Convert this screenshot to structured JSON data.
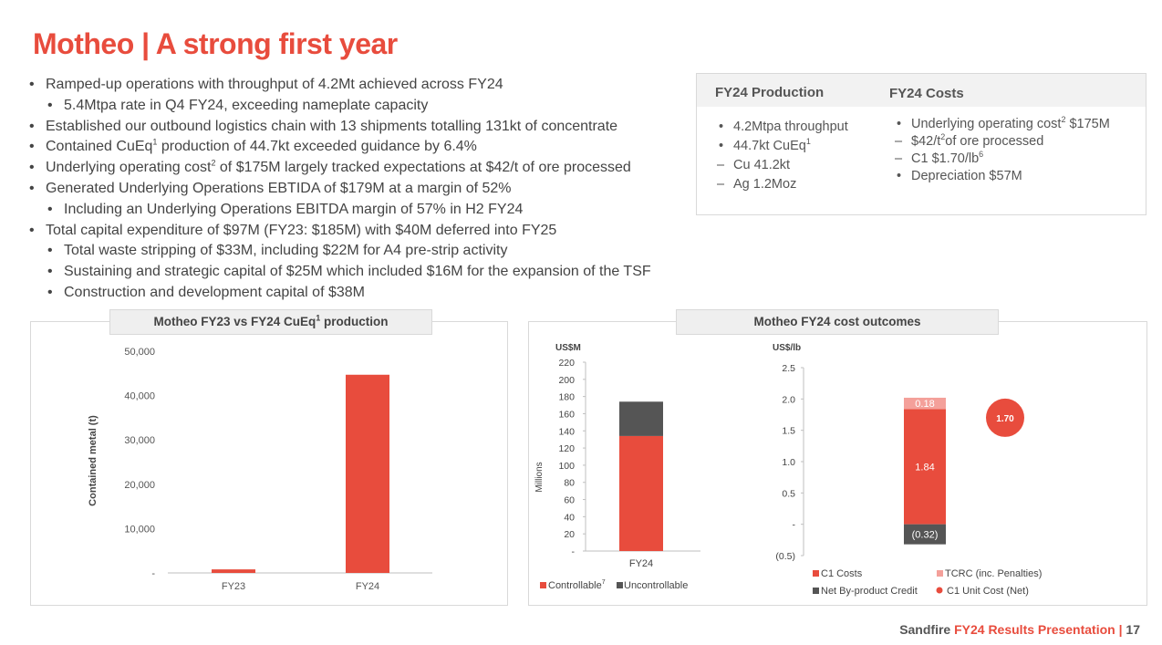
{
  "title": "Motheo | A strong first year",
  "bullets": [
    {
      "pre": "Ramped-up operations with throughput of 4.2Mt achieved across FY24",
      "sup": "",
      "post": ""
    },
    {
      "pre": "5.4Mtpa rate in Q4 FY24, exceeding nameplate capacity",
      "sup": "",
      "post": ""
    },
    {
      "pre": "Established our outbound logistics chain with 13 shipments totalling 131kt of concentrate",
      "sup": "",
      "post": ""
    },
    {
      "pre": "Contained CuEq",
      "sup": "1",
      "post": " production of 44.7kt exceeded guidance by 6.4%"
    },
    {
      "pre": "Underlying operating cost",
      "sup": "2",
      "post": " of $175M largely tracked expectations at $42/t of ore processed"
    },
    {
      "pre": "Generated Underlying Operations EBTIDA of $179M at a margin of 52%",
      "sup": "",
      "post": ""
    },
    {
      "pre": "Including an Underlying Operations EBITDA margin of 57% in H2 FY24",
      "sup": "",
      "post": ""
    },
    {
      "pre": "Total capital expenditure of $97M (FY23: $185M) with $40M deferred into FY25",
      "sup": "",
      "post": ""
    },
    {
      "pre": "Total waste stripping of $33M, including $22M for A4 pre-strip activity",
      "sup": "",
      "post": ""
    },
    {
      "pre": "Sustaining and strategic capital of $25M which included $16M for the expansion of the TSF",
      "sup": "",
      "post": ""
    },
    {
      "pre": "Construction and development capital of $38M",
      "sup": "",
      "post": ""
    }
  ],
  "summary": {
    "production_heading": "FY24 Production",
    "costs_heading": "FY24 Costs",
    "production_items": [
      {
        "text": "4.2Mtpa throughput",
        "sup": ""
      },
      {
        "text": "44.7kt CuEq",
        "sup": "1"
      },
      {
        "text": "Cu 41.2kt",
        "sup": ""
      },
      {
        "text": "Ag 1.2Moz",
        "sup": ""
      }
    ],
    "cost_items": [
      {
        "pre": "Underlying operating cost",
        "sup": "2",
        "post": " $175M"
      },
      {
        "pre": "$42/t",
        "sup": "2",
        "post": "of ore processed"
      },
      {
        "pre": "C1 $1.70/lb",
        "sup": "6",
        "post": ""
      },
      {
        "pre": "Depreciation $57M",
        "sup": "",
        "post": ""
      }
    ]
  },
  "chart1_title": {
    "pre": "Motheo FY23 vs FY24 CuEq",
    "sup": "1",
    "post": " production"
  },
  "chart2_panel_title": "Motheo FY24 cost outcomes",
  "chart_data": [
    {
      "type": "bar",
      "ylabel": "Contained metal (t)",
      "categories": [
        "FY23",
        "FY24"
      ],
      "values": [
        800,
        44700
      ],
      "ylim": [
        0,
        50000
      ],
      "yticks": [
        0,
        10000,
        20000,
        30000,
        40000,
        50000
      ],
      "ytick_labels": [
        "-",
        "10,000",
        "20,000",
        "30,000",
        "40,000",
        "50,000"
      ],
      "colors": {
        "bar": "#e84c3d"
      }
    },
    {
      "type": "bar",
      "stacked": true,
      "unit_label": "US$M",
      "ylabel": "Millions",
      "categories": [
        "FY24"
      ],
      "ylim": [
        0,
        220
      ],
      "yticks": [
        0,
        20,
        40,
        60,
        80,
        100,
        120,
        140,
        160,
        180,
        200,
        220
      ],
      "ytick_labels": [
        "-",
        "20",
        "40",
        "60",
        "80",
        "100",
        "120",
        "140",
        "160",
        "180",
        "200",
        "220"
      ],
      "series": [
        {
          "name": "Controllable",
          "name_sup": "7",
          "values": [
            134
          ],
          "color": "#e84c3d"
        },
        {
          "name": "Uncontrollable",
          "values": [
            40
          ],
          "color": "#555555"
        }
      ]
    },
    {
      "type": "bar",
      "stacked": true,
      "unit_label": "US$/lb",
      "categories": [
        "FY24"
      ],
      "ylim": [
        -0.5,
        2.5
      ],
      "yticks": [
        -0.5,
        0,
        0.5,
        1.0,
        1.5,
        2.0,
        2.5
      ],
      "ytick_labels": [
        "(0.5)",
        "-",
        "0.5",
        "1.0",
        "1.5",
        "2.0",
        "2.5"
      ],
      "series": [
        {
          "name": "C1 Costs",
          "value": 1.84,
          "label": "1.84",
          "color": "#e84c3d"
        },
        {
          "name": "TCRC (inc. Penalties)",
          "value": 0.18,
          "label": "0.18",
          "color": "#f4a09a"
        },
        {
          "name": "Net By-product Credit",
          "value": -0.32,
          "label": "(0.32)",
          "color": "#555555"
        },
        {
          "name": "C1 Unit Cost (Net)",
          "value": 1.7,
          "label": "1.70",
          "color": "#e84c3d",
          "marker": "dot"
        }
      ]
    }
  ],
  "footer": {
    "brand": "Sandfire",
    "title": "FY24 Results Presentation",
    "separator": "|",
    "page": "17"
  }
}
